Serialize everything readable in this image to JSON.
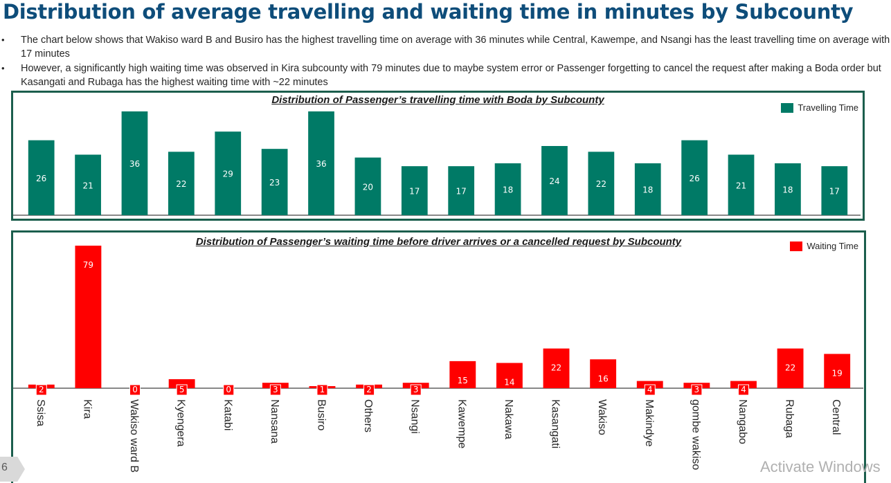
{
  "page": {
    "title": "Distribution of average travelling and waiting time in minutes by Subcounty",
    "bullets": [
      "The chart below shows that Wakiso ward B and Busiro has the highest travelling time on average with 36 minutes while Central, Kawempe, and Nsangi has the least travelling time on average with 17 minutes",
      "However, a significantly high waiting time was observed in Kira subcounty with 79 minutes due to maybe system error or Passenger forgetting to cancel the request after making a Boda order but Kasangati and Rubaga has the highest waiting time with ~22 minutes"
    ],
    "bullet_symbol": "•",
    "page_number": "6",
    "watermark": "Activate Windows"
  },
  "colors": {
    "title": "#0e4d7a",
    "travel_bar": "#007a66",
    "wait_bar": "#ff0000",
    "panel_border": "#1b5e4d"
  },
  "chart_data": [
    {
      "type": "bar",
      "title": "Distribution of Passenger’s travelling time with Boda by Subcounty",
      "categories": [
        "Ssisa",
        "Kira",
        "Wakiso ward B",
        "Kyengera",
        "Katabi",
        "Nansana",
        "Busiro",
        "Others",
        "Nsangi",
        "Kawempe",
        "Nakawa",
        "Kasangati",
        "Wakiso",
        "Makindye",
        "gombe wakiso",
        "Nangabo",
        "Rubaga",
        "Central"
      ],
      "series": [
        {
          "name": "Travelling Time",
          "values": [
            26,
            21,
            36,
            22,
            29,
            23,
            36,
            20,
            17,
            17,
            18,
            24,
            22,
            18,
            26,
            21,
            18,
            17
          ]
        }
      ],
      "ylim": [
        0,
        36
      ],
      "legend": "top-right",
      "grid": false,
      "data_labels": true
    },
    {
      "type": "bar",
      "title": "Distribution of Passenger’s waiting time before driver arrives or a cancelled request by Subcounty",
      "categories": [
        "Ssisa",
        "Kira",
        "Wakiso ward B",
        "Kyengera",
        "Katabi",
        "Nansana",
        "Busiro",
        "Others",
        "Nsangi",
        "Kawempe",
        "Nakawa",
        "Kasangati",
        "Wakiso",
        "Makindye",
        "gombe wakiso",
        "Nangabo",
        "Rubaga",
        "Central"
      ],
      "series": [
        {
          "name": "Waiting Time",
          "values": [
            2,
            79,
            0,
            5,
            0,
            3,
            1,
            2,
            3,
            15,
            14,
            22,
            16,
            4,
            3,
            4,
            22,
            19
          ]
        }
      ],
      "ylim": [
        0,
        79
      ],
      "legend": "top-right",
      "grid": false,
      "data_labels": true
    }
  ]
}
